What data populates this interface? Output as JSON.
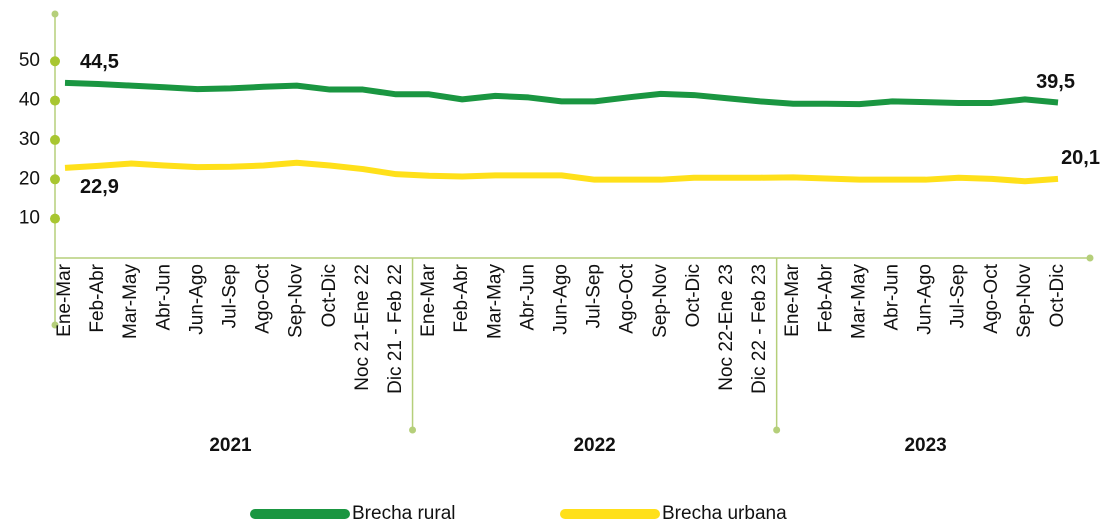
{
  "chart_data": {
    "type": "line",
    "categories": [
      "Ene-Mar",
      "Feb-Abr",
      "Mar-May",
      "Abr-Jun",
      "Jun-Ago",
      "Jul-Sep",
      "Ago-Oct",
      "Sep-Nov",
      "Oct-Dic",
      "Noc 21-Ene 22",
      "Dic 21 - Feb 22",
      "Ene-Mar",
      "Feb-Abr",
      "Mar-May",
      "Abr-Jun",
      "Jun-Ago",
      "Jul-Sep",
      "Ago-Oct",
      "Sep-Nov",
      "Oct-Dic",
      "Noc 22-Ene 23",
      "Dic 22 - Feb 23",
      "Ene-Mar",
      "Feb-Abr",
      "Mar-May",
      "Abr-Jun",
      "Jun-Ago",
      "Jul-Sep",
      "Ago-Oct",
      "Sep-Nov",
      "Oct-Dic"
    ],
    "groups": [
      {
        "label": "2021",
        "count": 11
      },
      {
        "label": "2022",
        "count": 11
      },
      {
        "label": "2023",
        "count": 9
      }
    ],
    "series": [
      {
        "name": "Brecha rural",
        "color": "#1a9641",
        "values": [
          44.5,
          44.2,
          43.8,
          43.4,
          42.9,
          43.1,
          43.5,
          43.8,
          42.8,
          42.8,
          41.6,
          41.6,
          40.3,
          41.2,
          40.8,
          39.8,
          39.8,
          40.8,
          41.7,
          41.4,
          40.6,
          39.8,
          39.2,
          39.2,
          39.1,
          39.8,
          39.6,
          39.4,
          39.4,
          40.3,
          39.5
        ],
        "value_labels": [
          "44,5",
          null,
          null,
          null,
          null,
          null,
          null,
          null,
          null,
          null,
          null,
          null,
          null,
          null,
          null,
          null,
          null,
          null,
          null,
          null,
          null,
          null,
          null,
          null,
          null,
          null,
          null,
          null,
          null,
          null,
          "39,5"
        ]
      },
      {
        "name": "Brecha urbana",
        "color": "#ffe01a",
        "values": [
          22.9,
          23.4,
          24.0,
          23.5,
          23.1,
          23.2,
          23.5,
          24.2,
          23.5,
          22.6,
          21.3,
          20.9,
          20.7,
          21.0,
          21.0,
          21.0,
          19.9,
          19.9,
          19.9,
          20.4,
          20.4,
          20.4,
          20.5,
          20.2,
          19.9,
          19.9,
          19.9,
          20.4,
          20.1,
          19.5,
          20.1
        ],
        "value_labels": [
          "22,9",
          null,
          null,
          null,
          null,
          null,
          null,
          null,
          null,
          null,
          null,
          null,
          null,
          null,
          null,
          null,
          null,
          null,
          null,
          null,
          null,
          null,
          null,
          null,
          null,
          null,
          null,
          null,
          null,
          null,
          "20,1"
        ]
      }
    ],
    "ylim": [
      0,
      62
    ],
    "yticks": [
      10,
      20,
      30,
      40,
      50
    ]
  }
}
